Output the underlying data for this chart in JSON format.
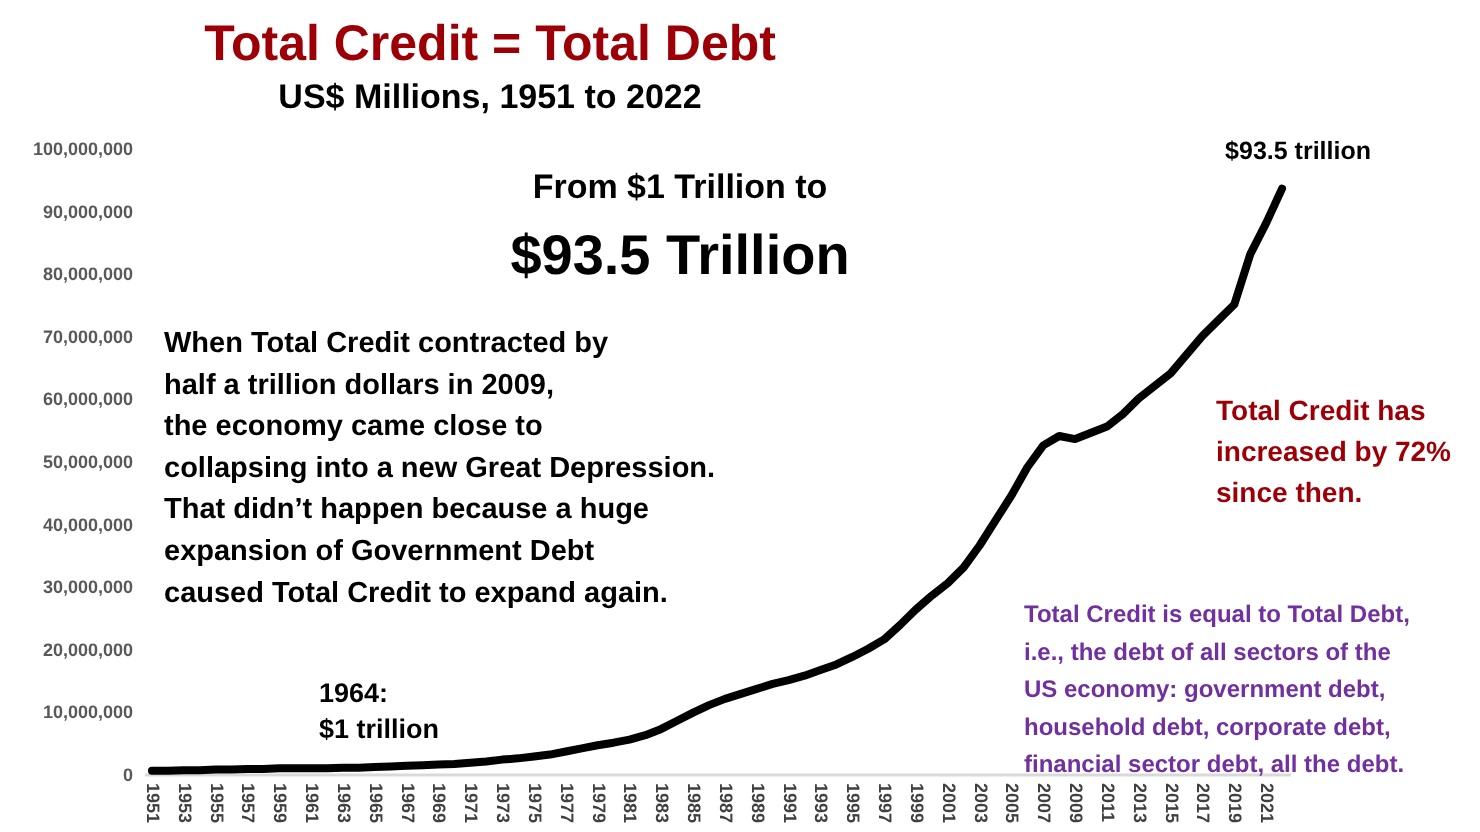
{
  "chart_data": {
    "type": "line",
    "title": "Total Credit = Total Debt",
    "subtitle": "US$ Millions, 1951 to 2022",
    "x": [
      1951,
      1952,
      1953,
      1954,
      1955,
      1956,
      1957,
      1958,
      1959,
      1960,
      1961,
      1962,
      1963,
      1964,
      1965,
      1966,
      1967,
      1968,
      1969,
      1970,
      1971,
      1972,
      1973,
      1974,
      1975,
      1976,
      1977,
      1978,
      1979,
      1980,
      1981,
      1982,
      1983,
      1984,
      1985,
      1986,
      1987,
      1988,
      1989,
      1990,
      1991,
      1992,
      1993,
      1994,
      1995,
      1996,
      1997,
      1998,
      1999,
      2000,
      2001,
      2002,
      2003,
      2004,
      2005,
      2006,
      2007,
      2008,
      2009,
      2010,
      2011,
      2012,
      2013,
      2014,
      2015,
      2016,
      2017,
      2018,
      2019,
      2020,
      2021,
      2022
    ],
    "series": [
      {
        "color": "#000000",
        "values": [
          500000,
          500000,
          600000,
          600000,
          700000,
          700000,
          800000,
          800000,
          900000,
          900000,
          900000,
          900000,
          1000000,
          1000000,
          1100000,
          1200000,
          1300000,
          1400000,
          1500000,
          1600000,
          1800000,
          2000000,
          2300000,
          2500000,
          2800000,
          3100000,
          3600000,
          4100000,
          4600000,
          5000000,
          5500000,
          6200000,
          7200000,
          8500000,
          9800000,
          11000000,
          12000000,
          12800000,
          13600000,
          14400000,
          15000000,
          15700000,
          16600000,
          17500000,
          18700000,
          20000000,
          21500000,
          23800000,
          26300000,
          28500000,
          30500000,
          33000000,
          36500000,
          40500000,
          44500000,
          49000000,
          52500000,
          54000000,
          53500000,
          54500000,
          55500000,
          57500000,
          60000000,
          62000000,
          64000000,
          67000000,
          70000000,
          72500000,
          75000000,
          83000000,
          88000000,
          93500000
        ]
      }
    ],
    "xlim": [
      1950.5,
      2022.5
    ],
    "xticks": [
      1951,
      1953,
      1955,
      1957,
      1959,
      1961,
      1963,
      1965,
      1967,
      1969,
      1971,
      1973,
      1975,
      1977,
      1979,
      1981,
      1983,
      1985,
      1987,
      1989,
      1991,
      1993,
      1995,
      1997,
      1999,
      2001,
      2003,
      2005,
      2007,
      2009,
      2011,
      2013,
      2015,
      2017,
      2019,
      2021
    ],
    "ylim": [
      0,
      100000000
    ],
    "yticks": [
      {
        "value": 0,
        "label": "0"
      },
      {
        "value": 10000000,
        "label": "10,000,000"
      },
      {
        "value": 20000000,
        "label": "20,000,000"
      },
      {
        "value": 30000000,
        "label": "30,000,000"
      },
      {
        "value": 40000000,
        "label": "40,000,000"
      },
      {
        "value": 50000000,
        "label": "50,000,000"
      },
      {
        "value": 60000000,
        "label": "60,000,000"
      },
      {
        "value": 70000000,
        "label": "70,000,000"
      },
      {
        "value": 80000000,
        "label": "80,000,000"
      },
      {
        "value": 90000000,
        "label": "90,000,000"
      },
      {
        "value": 100000000,
        "label": "100,000,000"
      }
    ],
    "grid": false,
    "line_style": "solid",
    "marker": "none",
    "annotations": [
      "From $1 Trillion to",
      "$93.5 Trillion",
      "When Total Credit contracted by\nhalf a trillion dollars in 2009,\nthe economy came close to\ncollapsing into a new Great Depression.\nThat didn’t happen because a huge\nexpansion of Government Debt\ncaused Total Credit to expand again.",
      "Total Credit has\nincreased by 72%\nsince then.",
      "Total Credit is equal to Total Debt,\ni.e., the debt of all sectors of the\nUS economy: government debt,\nhousehold debt, corporate debt,\nfinancial sector debt, all the debt.",
      {
        "text": "$93.5 trillion",
        "x": 2022,
        "y": 93500000
      },
      {
        "text": "1964:\n$1 trillion",
        "x": 1964,
        "y": 1000000
      }
    ]
  }
}
